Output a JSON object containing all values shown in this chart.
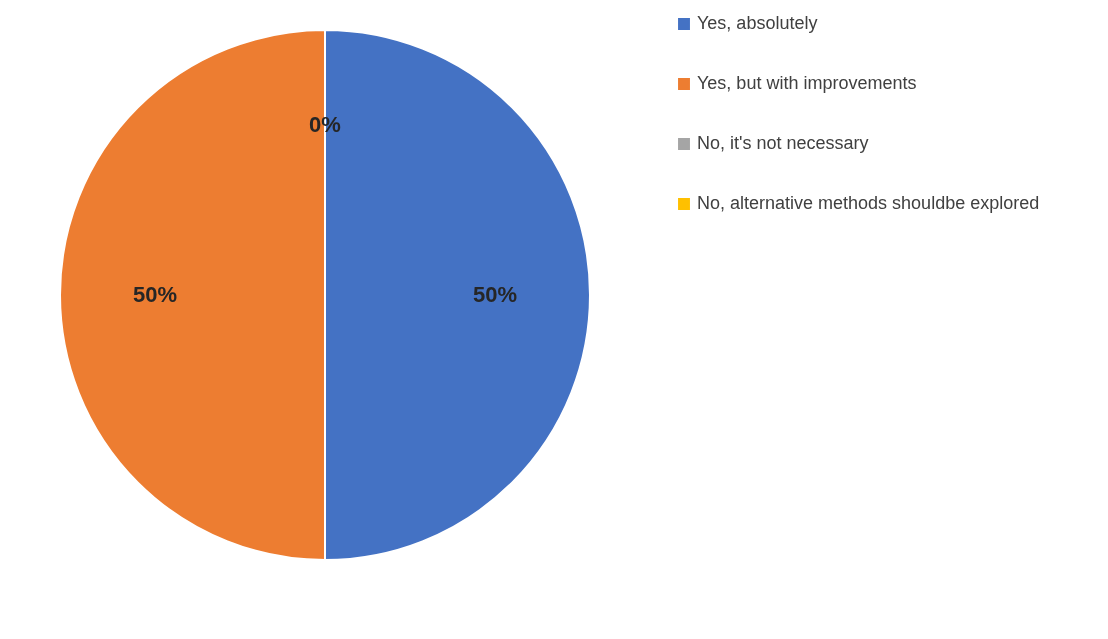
{
  "chart_data": {
    "type": "pie",
    "categories": [
      "Yes, absolutely",
      "Yes, but with improvements",
      "No, it's not necessary",
      "No, alternative methods shouldbe explored"
    ],
    "values": [
      50,
      50,
      0,
      0
    ],
    "colors": [
      "#4472c4",
      "#ed7d31",
      "#a5a5a5",
      "#ffc000"
    ],
    "value_labels": [
      "50%",
      "50%",
      "0%",
      null
    ],
    "legend": "right"
  }
}
